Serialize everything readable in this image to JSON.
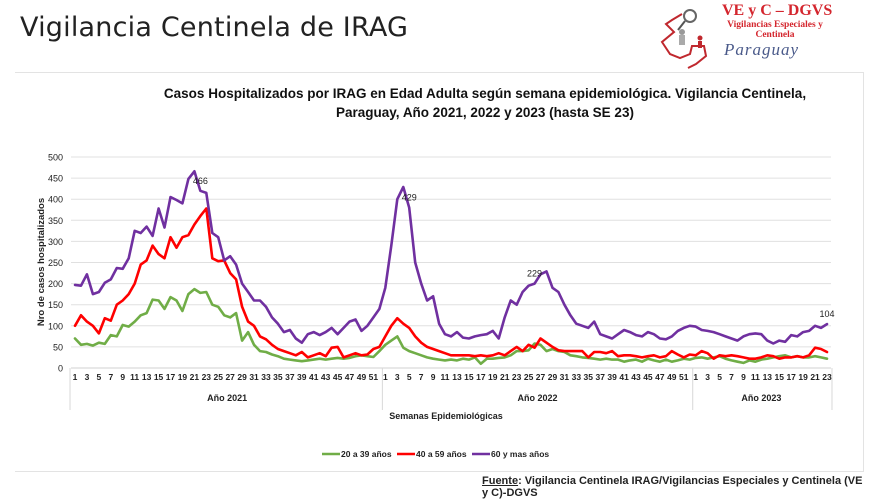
{
  "slide_title": "Vigilancia Centinela de IRAG",
  "logo": {
    "line1": "VE y C – DGVS",
    "line2": "Vigilancias Especiales y Centinela",
    "line3": "Paraguay"
  },
  "source": {
    "label": "Fuente",
    "text": ": Vigilancia  Centinela IRAG/Vigilancias Especiales y Centinela (VE y C)-DGVS"
  },
  "chart_data": {
    "type": "line",
    "title": "Casos Hospitalizados por IRAG en Edad Adulta según semana epidemiológica. Vigilancia Centinela, Paraguay, Año 2021, 2022 y 2023 (hasta SE 23)",
    "title_line1": "Casos Hospitalizados por IRAG en Edad Adulta según semana epidemiológica. Vigilancia Centinela,",
    "title_line2": "Paraguay, Año 2021, 2022 y 2023 (hasta SE 23)",
    "xlabel": "Semanas Epidemiológicas",
    "ylabel": "Nro de casos hospitalizados",
    "ylim": [
      0,
      500
    ],
    "yticks": [
      0,
      50,
      100,
      150,
      200,
      250,
      300,
      350,
      400,
      450,
      500
    ],
    "grid": true,
    "legend_position": "bottom",
    "groups": [
      {
        "label": "Año 2021",
        "weeks": 52
      },
      {
        "label": "Año 2022",
        "weeks": 52
      },
      {
        "label": "Año 2023",
        "weeks": 23
      }
    ],
    "annotations": [
      {
        "series": "60 y mas años",
        "index": 21,
        "text": "466"
      },
      {
        "series": "60 y mas años",
        "index": 56,
        "text": "429"
      },
      {
        "series": "60 y mas años",
        "index": 77,
        "text": "229"
      },
      {
        "series": "60 y mas años",
        "index": 126,
        "text": "104"
      }
    ],
    "series": [
      {
        "name": "20 a 39 años",
        "color": "#70ad47",
        "values": [
          70,
          55,
          57,
          53,
          60,
          57,
          78,
          75,
          102,
          98,
          110,
          125,
          130,
          162,
          160,
          140,
          168,
          160,
          135,
          175,
          187,
          178,
          180,
          150,
          145,
          125,
          120,
          130,
          65,
          85,
          55,
          40,
          38,
          32,
          28,
          22,
          20,
          18,
          16,
          18,
          20,
          22,
          20,
          22,
          24,
          22,
          24,
          28,
          30,
          28,
          26,
          40,
          55,
          65,
          75,
          48,
          40,
          35,
          30,
          25,
          22,
          20,
          18,
          20,
          18,
          22,
          20,
          25,
          10,
          22,
          22,
          24,
          25,
          30,
          40,
          40,
          42,
          58,
          55,
          40,
          45,
          40,
          38,
          30,
          28,
          25,
          24,
          22,
          20,
          22,
          20,
          20,
          15,
          18,
          20,
          15,
          22,
          18,
          15,
          20,
          15,
          18,
          22,
          20,
          24,
          25,
          22,
          25,
          28,
          22,
          18,
          15,
          12,
          18,
          15,
          20,
          22,
          25,
          28,
          30,
          25,
          28,
          25,
          25,
          28,
          25,
          22
        ]
      },
      {
        "name": "40 a 59 años",
        "color": "#ff0000",
        "values": [
          100,
          125,
          110,
          100,
          82,
          118,
          112,
          150,
          160,
          175,
          200,
          245,
          255,
          290,
          270,
          260,
          310,
          285,
          310,
          315,
          340,
          360,
          378,
          260,
          253,
          255,
          225,
          210,
          145,
          110,
          100,
          75,
          68,
          55,
          45,
          40,
          35,
          30,
          38,
          25,
          30,
          35,
          28,
          48,
          50,
          25,
          30,
          35,
          30,
          32,
          45,
          50,
          75,
          100,
          118,
          105,
          95,
          75,
          60,
          50,
          45,
          40,
          35,
          30,
          30,
          30,
          30,
          28,
          30,
          28,
          30,
          35,
          30,
          40,
          50,
          40,
          55,
          48,
          70,
          60,
          50,
          42,
          40,
          40,
          40,
          40,
          25,
          38,
          38,
          35,
          40,
          28,
          30,
          30,
          28,
          25,
          28,
          30,
          25,
          28,
          40,
          32,
          25,
          32,
          30,
          40,
          35,
          22,
          30,
          28,
          30,
          28,
          25,
          22,
          22,
          25,
          30,
          28,
          22,
          25,
          25,
          28,
          25,
          30,
          48,
          45,
          38
        ]
      },
      {
        "name": "60 y mas años",
        "color": "#7030a0",
        "values": [
          197,
          195,
          222,
          175,
          180,
          202,
          210,
          237,
          235,
          260,
          325,
          320,
          335,
          313,
          378,
          333,
          405,
          398,
          390,
          448,
          466,
          420,
          415,
          320,
          310,
          255,
          265,
          245,
          200,
          180,
          160,
          160,
          145,
          120,
          105,
          85,
          90,
          70,
          60,
          80,
          85,
          78,
          85,
          95,
          80,
          95,
          110,
          115,
          88,
          100,
          120,
          140,
          190,
          290,
          400,
          429,
          380,
          250,
          200,
          160,
          170,
          105,
          80,
          75,
          85,
          72,
          70,
          75,
          78,
          80,
          88,
          70,
          120,
          160,
          150,
          180,
          195,
          200,
          222,
          229,
          190,
          180,
          150,
          125,
          105,
          100,
          95,
          110,
          80,
          75,
          70,
          80,
          90,
          85,
          78,
          75,
          85,
          80,
          70,
          68,
          75,
          88,
          95,
          100,
          98,
          90,
          88,
          85,
          80,
          75,
          70,
          65,
          75,
          80,
          82,
          80,
          65,
          58,
          65,
          62,
          78,
          75,
          85,
          88,
          100,
          95,
          104
        ]
      }
    ]
  }
}
